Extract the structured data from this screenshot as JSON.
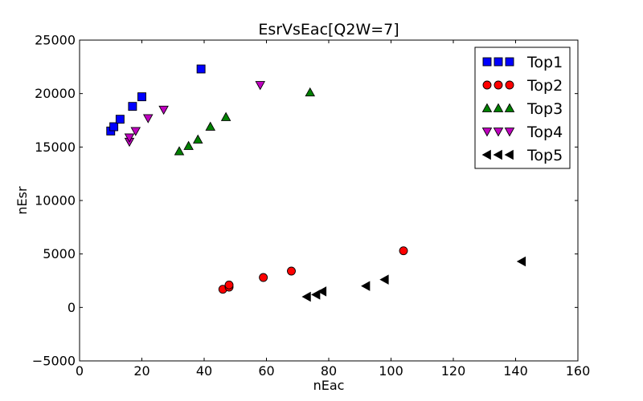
{
  "chart_data": {
    "type": "scatter",
    "title": "EsrVsEac[Q2W=7]",
    "xlabel": "nEac",
    "ylabel": "nEsr",
    "xlim": [
      0,
      160
    ],
    "ylim": [
      -5000,
      25000
    ],
    "xticks": [
      "0",
      "20",
      "40",
      "60",
      "80",
      "100",
      "120",
      "140",
      "160"
    ],
    "yticks": [
      "−5000",
      "0",
      "5000",
      "10000",
      "15000",
      "20000",
      "25000"
    ],
    "grid": false,
    "legend_position": "top-right",
    "series": [
      {
        "name": "Top1",
        "marker": "square",
        "color": "#0000ff",
        "points": [
          [
            10,
            16500
          ],
          [
            11,
            16900
          ],
          [
            13,
            17600
          ],
          [
            17,
            18800
          ],
          [
            20,
            19700
          ],
          [
            39,
            22300
          ]
        ]
      },
      {
        "name": "Top2",
        "marker": "circle",
        "color": "#ff0000",
        "points": [
          [
            46,
            1700
          ],
          [
            48,
            1900
          ],
          [
            48,
            2100
          ],
          [
            59,
            2800
          ],
          [
            68,
            3400
          ],
          [
            104,
            5300
          ]
        ]
      },
      {
        "name": "Top3",
        "marker": "triangle-up",
        "color": "#008000",
        "points": [
          [
            32,
            14600
          ],
          [
            35,
            15100
          ],
          [
            38,
            15700
          ],
          [
            42,
            16900
          ],
          [
            47,
            17800
          ],
          [
            74,
            20100
          ]
        ]
      },
      {
        "name": "Top4",
        "marker": "triangle-down",
        "color": "#bf00bf",
        "points": [
          [
            16,
            15500
          ],
          [
            16,
            15900
          ],
          [
            18,
            16500
          ],
          [
            22,
            17700
          ],
          [
            27,
            18500
          ],
          [
            58,
            20800
          ]
        ]
      },
      {
        "name": "Top5",
        "marker": "triangle-left",
        "color": "#000000",
        "points": [
          [
            73,
            1000
          ],
          [
            76,
            1200
          ],
          [
            78,
            1500
          ],
          [
            92,
            2000
          ],
          [
            98,
            2600
          ],
          [
            142,
            4300
          ]
        ]
      }
    ]
  }
}
